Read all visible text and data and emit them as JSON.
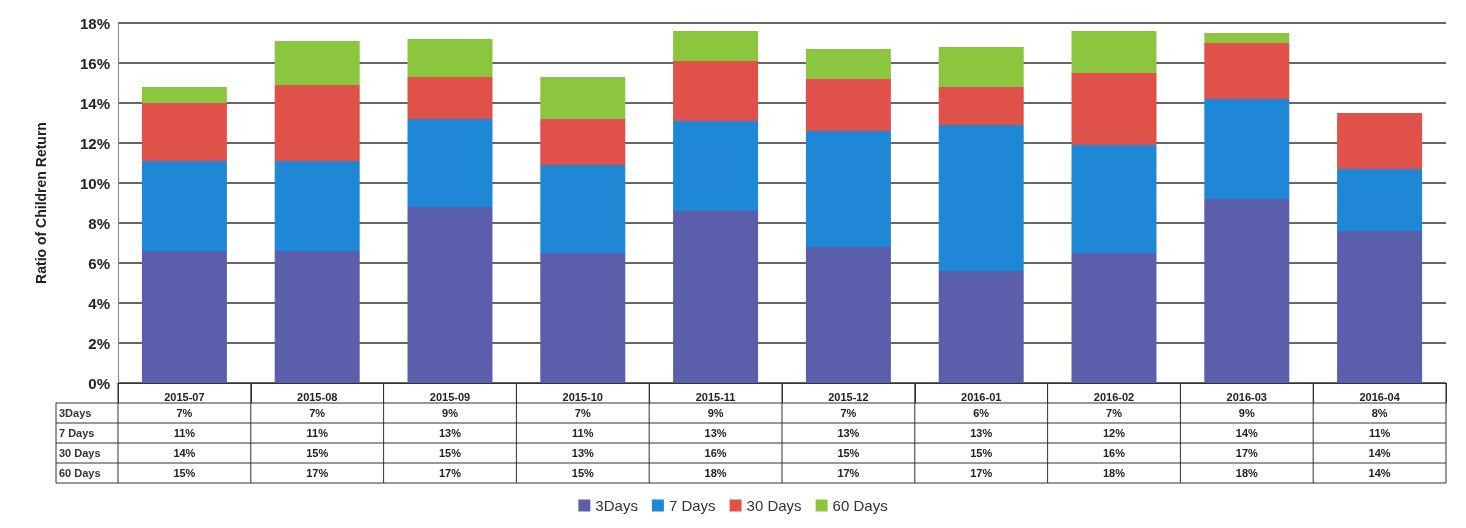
{
  "chart_data": {
    "type": "bar",
    "stacked": true,
    "ylabel": "Ratio of Children Return",
    "categories": [
      "2015-07",
      "2015-08",
      "2015-09",
      "2015-10",
      "2015-11",
      "2015-12",
      "2016-01",
      "2016-02",
      "2016-03",
      "2016-04"
    ],
    "series": [
      {
        "name": "3Days",
        "color": "#5a5eab",
        "values": [
          6.6,
          6.6,
          8.8,
          6.5,
          8.6,
          6.8,
          5.6,
          6.5,
          9.2,
          7.6
        ]
      },
      {
        "name": "7 Days",
        "color": "#1f88d6",
        "values": [
          4.5,
          4.5,
          4.4,
          4.4,
          4.5,
          5.8,
          7.3,
          5.4,
          5.0,
          3.1
        ]
      },
      {
        "name": "30 Days",
        "color": "#df5149",
        "values": [
          2.9,
          3.8,
          2.1,
          2.3,
          3.0,
          2.6,
          1.9,
          3.6,
          2.8,
          2.8
        ]
      },
      {
        "name": "60 Days",
        "color": "#8cc63f",
        "values": [
          0.8,
          2.2,
          1.9,
          2.1,
          1.5,
          1.5,
          2.0,
          2.1,
          0.5,
          0
        ]
      }
    ],
    "annotations": [
      "7%",
      "7%",
      "9%",
      "7%",
      "9%",
      "7%",
      "6%",
      "7%",
      "9%",
      "8%",
      "11%",
      "11%",
      "13%",
      "11%",
      "13%",
      "13%",
      "13%",
      "12%",
      "14%",
      "11%",
      "14%",
      "15%",
      "15%",
      "13%",
      "16%",
      "15%",
      "15%",
      "16%",
      "17%",
      "14%",
      "15%",
      "17%",
      "17%",
      "15%",
      "18%",
      "17%",
      "17%",
      "18%",
      "18%",
      "14%"
    ],
    "ylim": [
      0,
      18
    ],
    "yticks": [
      {
        "value": 0,
        "label": "0%"
      },
      {
        "value": 2,
        "label": "2%"
      },
      {
        "value": 4,
        "label": "4%"
      },
      {
        "value": 6,
        "label": "6%"
      },
      {
        "value": 8,
        "label": "8%"
      },
      {
        "value": 10,
        "label": "10%"
      },
      {
        "value": 12,
        "label": "12%"
      },
      {
        "value": 14,
        "label": "14%"
      },
      {
        "value": 16,
        "label": "16%"
      },
      {
        "value": 18,
        "label": "18%"
      }
    ],
    "grid": "y",
    "legend": "bottom"
  }
}
